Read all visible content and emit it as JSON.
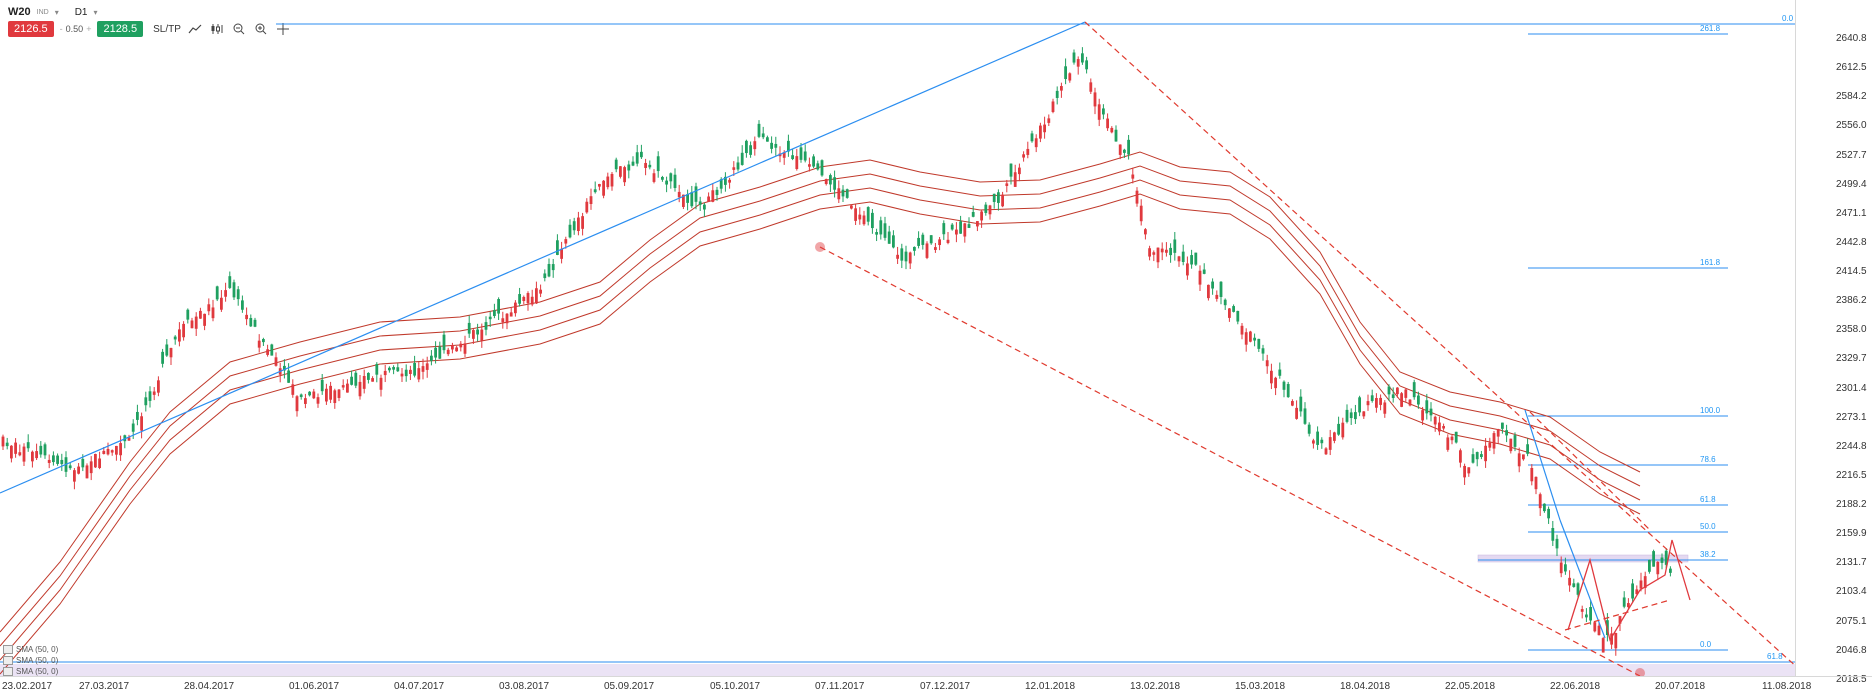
{
  "toolbar": {
    "symbol": "W20",
    "symbol_sub": "IND",
    "timeframe": "D1",
    "sell_price": "2126.5",
    "lot_minus": "-",
    "lot_value": "0.50",
    "lot_plus": "+",
    "buy_price": "2128.5",
    "sltp_label": "SL/TP",
    "tools": [
      "line-chart-icon",
      "candles-icon",
      "zoom-out-icon",
      "zoom-in-icon",
      "crosshair-icon"
    ]
  },
  "price_axis": [
    "2640.8",
    "2612.5",
    "2584.2",
    "2556.0",
    "2527.7",
    "2499.4",
    "2471.1",
    "2442.8",
    "2414.5",
    "2386.2",
    "2358.0",
    "2329.7",
    "2301.4",
    "2273.1",
    "2244.8",
    "2216.5",
    "2188.2",
    "2159.9",
    "2131.7",
    "2103.4",
    "2075.1",
    "2046.8",
    "2018.5"
  ],
  "time_axis": [
    "23.02.2017",
    "27.03.2017",
    "28.04.2017",
    "01.06.2017",
    "04.07.2017",
    "03.08.2017",
    "05.09.2017",
    "05.10.2017",
    "07.11.2017",
    "07.12.2017",
    "12.01.2018",
    "13.02.2018",
    "15.03.2018",
    "18.04.2018",
    "22.05.2018",
    "22.06.2018",
    "20.07.2018",
    "11.08.2018"
  ],
  "fib_upper": [
    {
      "label": "0.0"
    },
    {
      "label": "261.8"
    },
    {
      "label": "161.8"
    },
    {
      "label": "100.0"
    },
    {
      "label": "78.6"
    },
    {
      "label": "61.8"
    },
    {
      "label": "50.0"
    },
    {
      "label": "38.2"
    },
    {
      "label": "0.0"
    },
    {
      "label": "61.8"
    }
  ],
  "sma_legend": [
    {
      "label": "SMA (50, 0)"
    },
    {
      "label": "SMA (50, 0)"
    },
    {
      "label": "SMA (50, 0)"
    }
  ],
  "colors": {
    "up": "#1fa060",
    "down": "#e0393e",
    "sma": "#c0392b",
    "trend_blue": "#2b8ef0",
    "dashed": "#e03a2e",
    "zone": "#ddd0ee"
  }
}
